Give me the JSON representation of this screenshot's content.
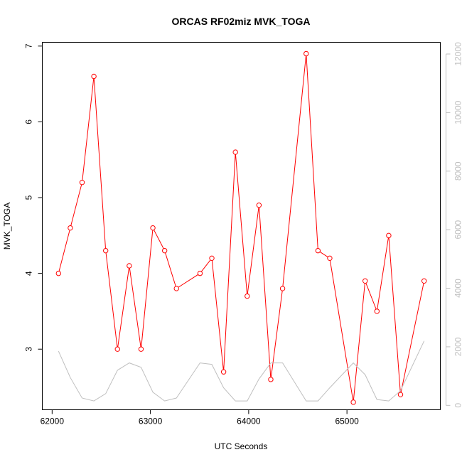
{
  "chart_data": {
    "type": "line",
    "title": "ORCAS RF02miz MVK_TOGA",
    "xlabel": "UTC Seconds",
    "ylabel": "MVK_TOGA",
    "xlim": [
      61900,
      65950
    ],
    "ylim": [
      2.2,
      7.05
    ],
    "y2lim": [
      -150,
      12400
    ],
    "x_ticks": [
      62000,
      63000,
      64000,
      65000
    ],
    "y_ticks": [
      3,
      4,
      5,
      6,
      7
    ],
    "y2_ticks": [
      0,
      2000,
      4000,
      6000,
      8000,
      10000,
      12000
    ],
    "grid": false,
    "series": [
      {
        "axis": "left",
        "color": "#ff0000",
        "marker": "open-circle",
        "x": [
          62065,
          62185,
          62305,
          62425,
          62545,
          62665,
          62785,
          62905,
          63025,
          63145,
          63265,
          63505,
          63625,
          63745,
          63865,
          63985,
          64105,
          64225,
          64345,
          64585,
          64705,
          64825,
          65065,
          65185,
          65305,
          65425,
          65545,
          65785
        ],
        "values": [
          4.0,
          4.6,
          5.2,
          6.6,
          4.3,
          3.0,
          4.1,
          3.0,
          4.6,
          4.3,
          3.8,
          4.0,
          4.2,
          2.7,
          5.6,
          3.7,
          4.9,
          2.6,
          3.8,
          6.9,
          4.3,
          4.2,
          2.3,
          3.9,
          3.5,
          4.5,
          2.4,
          3.9
        ]
      },
      {
        "axis": "right",
        "color": "#bfbfbf",
        "marker": "none",
        "x": [
          62065,
          62185,
          62305,
          62425,
          62545,
          62665,
          62785,
          62905,
          63025,
          63145,
          63265,
          63505,
          63625,
          63745,
          63865,
          63985,
          64105,
          64225,
          64345,
          64465,
          64585,
          64705,
          64825,
          65065,
          65185,
          65305,
          65425,
          65545,
          65785
        ],
        "values": [
          1850,
          950,
          250,
          150,
          400,
          1200,
          1450,
          1300,
          450,
          150,
          250,
          1450,
          1400,
          600,
          150,
          150,
          900,
          1450,
          1450,
          800,
          150,
          150,
          600,
          1450,
          1050,
          200,
          150,
          500,
          2200
        ]
      }
    ]
  }
}
